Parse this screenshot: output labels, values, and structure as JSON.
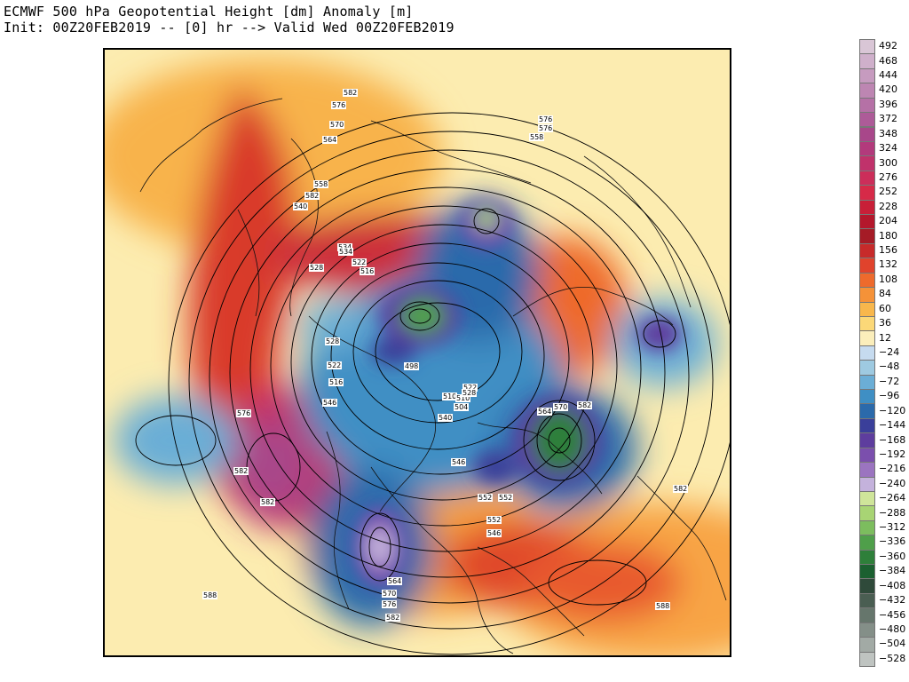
{
  "title": {
    "line1": "ECMWF 500 hPa Geopotential Height [dm] Anomaly [m]",
    "line2": "Init: 00Z20FEB2019 -- [0] hr --> Valid Wed 00Z20FEB2019"
  },
  "colorbar": {
    "labels": [
      "492",
      "468",
      "444",
      "420",
      "396",
      "372",
      "348",
      "324",
      "300",
      "276",
      "252",
      "228",
      "204",
      "180",
      "156",
      "132",
      "108",
      "84",
      "60",
      "36",
      "12",
      "−24",
      "−48",
      "−72",
      "−96",
      "−120",
      "−144",
      "−168",
      "−192",
      "−216",
      "−240",
      "−264",
      "−288",
      "−312",
      "−336",
      "−360",
      "−384",
      "−408",
      "−432",
      "−456",
      "−480",
      "−504",
      "−528"
    ],
    "colors": [
      "#d9c6d6",
      "#cfb0cb",
      "#c69bbf",
      "#bd86b2",
      "#b571a6",
      "#ad5b98",
      "#a8478a",
      "#b23a7c",
      "#c0326b",
      "#cc2e5a",
      "#d62a48",
      "#c81f38",
      "#b4172c",
      "#a51b26",
      "#c72a2a",
      "#e0432c",
      "#ee6a2c",
      "#f59238",
      "#f8b74c",
      "#fbd878",
      "#fbeebb",
      "#c6dbef",
      "#9ecae1",
      "#6baed6",
      "#3f8fc4",
      "#2b6aab",
      "#3a3f9a",
      "#5e3d9e",
      "#7b4fad",
      "#9b74c0",
      "#c4b2dc",
      "#cfe59a",
      "#a8d474",
      "#7cbd5e",
      "#4f9f4a",
      "#2e7f3a",
      "#1b6030",
      "#2f4a3a",
      "#4a5e52",
      "#66766c",
      "#848f88",
      "#a2aaa5",
      "#bfc4c1"
    ]
  },
  "contour_labels": [
    "582",
    "576",
    "570",
    "564",
    "558",
    "582",
    "540",
    "534",
    "528",
    "522",
    "516",
    "576",
    "576",
    "558",
    "552",
    "570",
    "564",
    "582",
    "498",
    "528",
    "522",
    "516",
    "510",
    "504",
    "540",
    "546",
    "552",
    "546",
    "576",
    "582",
    "582",
    "552",
    "546",
    "588",
    "564",
    "570",
    "576",
    "582",
    "588",
    "582",
    "510",
    "522",
    "528",
    "534"
  ]
}
